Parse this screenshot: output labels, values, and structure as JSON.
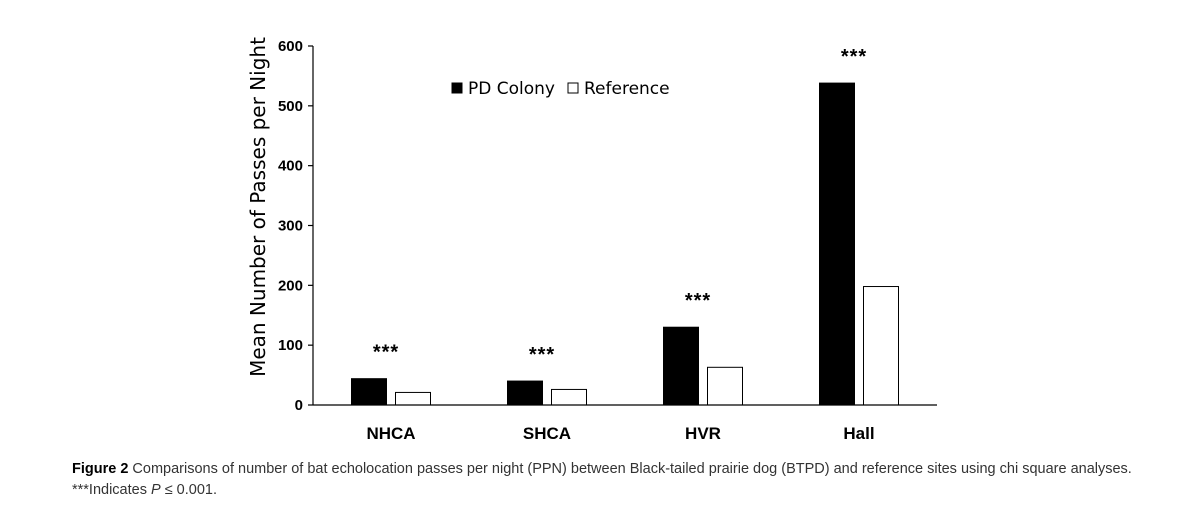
{
  "chart_data": {
    "type": "bar",
    "title": "",
    "xlabel": "",
    "ylabel": "Mean Number of Passes per Night",
    "categories": [
      "NHCA",
      "SHCA",
      "HVR",
      "Hall"
    ],
    "series": [
      {
        "name": "PD Colony",
        "values": [
          44,
          40,
          130,
          538
        ],
        "color": "#000000"
      },
      {
        "name": "Reference",
        "values": [
          21,
          26,
          63,
          198
        ],
        "color": "#ffffff"
      }
    ],
    "ylim": [
      0,
      600
    ],
    "yticks": [
      "0",
      "100",
      "200",
      "300",
      "400",
      "500",
      "600"
    ],
    "grid": false,
    "legend_position": "top-center",
    "annotations": [
      {
        "category": "NHCA",
        "text": "***"
      },
      {
        "category": "SHCA",
        "text": "***"
      },
      {
        "category": "HVR",
        "text": "***"
      },
      {
        "category": "Hall",
        "text": "***"
      }
    ]
  },
  "caption": {
    "label": "Figure 2",
    "text": " Comparisons of number of bat echolocation passes per night (PPN) between Black-tailed prairie dog (BTPD) and reference sites using chi square analyses. ***Indicates ",
    "p_symbol": "P",
    "p_rest": " ≤ 0.001."
  }
}
